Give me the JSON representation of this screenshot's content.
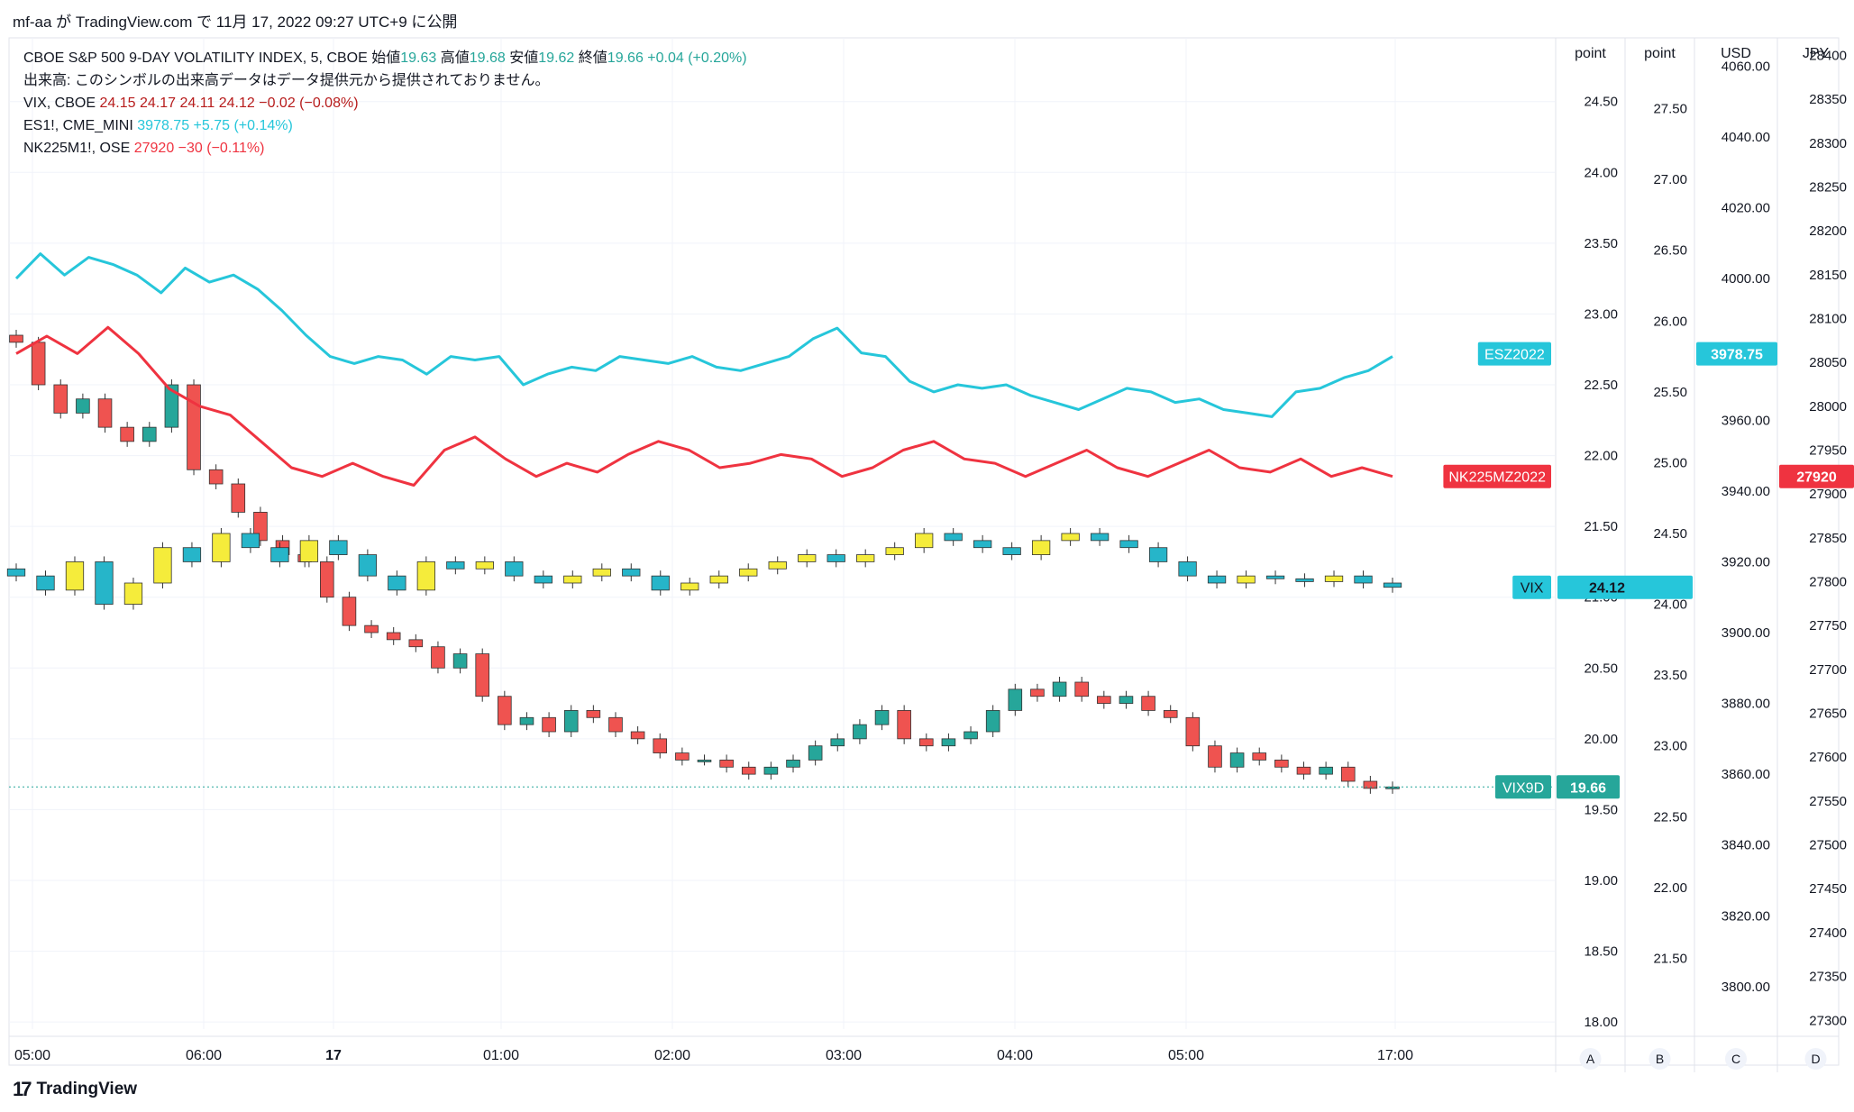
{
  "header": {
    "title": "mf-aa が TradingView.com で 11月 17, 2022 09:27 UTC+9 に公開"
  },
  "legend": {
    "main": {
      "name": "CBOE S&P 500 9-DAY VOLATILITY INDEX, 5, CBOE",
      "o_label": "始値",
      "o": "19.63",
      "h_label": "高値",
      "h": "19.68",
      "l_label": "安値",
      "l": "19.62",
      "c_label": "終値",
      "c": "19.66",
      "change": "+0.04 (+0.20%)"
    },
    "volume_note": "出来高: このシンボルの出来高データはデータ提供元から提供されておりません。",
    "vix": {
      "name": "VIX, CBOE",
      "values": "24.15  24.17  24.11  24.12  −0.02 (−0.08%)"
    },
    "es": {
      "name": "ES1!, CME_MINI",
      "values": "3978.75  +5.75 (+0.14%)"
    },
    "nk": {
      "name": "NK225M1!, OSE",
      "values": "27920  −30 (−0.11%)"
    }
  },
  "footer": {
    "brand": "TradingView",
    "logo": "17"
  },
  "chart_data": {
    "type": "line",
    "x_tick_labels": [
      "05:00",
      "06:00",
      "17",
      "01:00",
      "02:00",
      "03:00",
      "04:00",
      "05:00",
      "17:00"
    ],
    "axes": [
      {
        "id": "A",
        "unit": "point",
        "ticks": [
          "24.50",
          "24.00",
          "23.50",
          "23.00",
          "22.50",
          "22.00",
          "21.50",
          "21.00",
          "20.50",
          "20.00",
          "19.50",
          "19.00",
          "18.50",
          "18.00"
        ],
        "range": [
          17.95,
          24.95
        ]
      },
      {
        "id": "B",
        "unit": "point",
        "ticks": [
          "27.50",
          "27.00",
          "26.50",
          "26.00",
          "25.50",
          "25.00",
          "24.50",
          "24.00",
          "23.50",
          "23.00",
          "22.50",
          "22.00",
          "21.50"
        ],
        "range": [
          21.0,
          28.0
        ]
      },
      {
        "id": "C",
        "unit": "USD",
        "ticks": [
          "4060.00",
          "4040.00",
          "4020.00",
          "4000.00",
          "3980.00",
          "3960.00",
          "3940.00",
          "3920.00",
          "3900.00",
          "3880.00",
          "3860.00",
          "3840.00",
          "3820.00",
          "3800.00"
        ],
        "range": [
          3788,
          4068
        ]
      },
      {
        "id": "D",
        "unit": "JPY",
        "ticks": [
          "28400",
          "28350",
          "28300",
          "28250",
          "28200",
          "28150",
          "28100",
          "28050",
          "28000",
          "27950",
          "27900",
          "27850",
          "27800",
          "27750",
          "27700",
          "27650",
          "27600",
          "27550",
          "27500",
          "27450",
          "27400",
          "27350",
          "27300"
        ],
        "range": [
          27290,
          28420
        ]
      }
    ],
    "series": [
      {
        "name": "VIX9D",
        "type": "candlestick",
        "axis": "A",
        "last": "19.66",
        "color": "#26a69a",
        "values": [
          22.8,
          22.5,
          22.3,
          22.4,
          22.2,
          22.1,
          22.2,
          22.5,
          21.9,
          21.8,
          21.6,
          21.4,
          21.3,
          21.25,
          21.0,
          20.8,
          20.75,
          20.7,
          20.65,
          20.5,
          20.6,
          20.3,
          20.1,
          20.15,
          20.05,
          20.2,
          20.15,
          20.05,
          20.0,
          19.9,
          19.85,
          19.85,
          19.8,
          19.75,
          19.8,
          19.85,
          19.95,
          20.0,
          20.1,
          20.2,
          20.0,
          19.95,
          20.0,
          20.05,
          20.2,
          20.35,
          20.3,
          20.4,
          20.3,
          20.25,
          20.3,
          20.2,
          20.15,
          19.95,
          19.8,
          19.9,
          19.85,
          19.8,
          19.75,
          19.8,
          19.7,
          19.65,
          19.66
        ]
      },
      {
        "name": "VIX",
        "type": "candlestick",
        "axis": "B",
        "last": "24.12",
        "color": "#f5ec3b",
        "values": [
          24.2,
          24.1,
          24.3,
          24.0,
          24.15,
          24.4,
          24.3,
          24.5,
          24.4,
          24.3,
          24.45,
          24.35,
          24.2,
          24.1,
          24.3,
          24.25,
          24.3,
          24.2,
          24.15,
          24.2,
          24.25,
          24.2,
          24.1,
          24.15,
          24.2,
          24.25,
          24.3,
          24.35,
          24.3,
          24.35,
          24.4,
          24.5,
          24.45,
          24.4,
          24.35,
          24.45,
          24.5,
          24.45,
          24.4,
          24.3,
          24.2,
          24.15,
          24.2,
          24.18,
          24.16,
          24.2,
          24.15,
          24.12
        ]
      },
      {
        "name": "ESZ2022",
        "type": "line",
        "axis": "C",
        "last": "3978.75",
        "color": "#26c6da",
        "values": [
          4000,
          4007,
          4001,
          4006,
          4004,
          4001,
          3996,
          4003,
          3999,
          4001,
          3997,
          3991,
          3984,
          3978,
          3976,
          3978,
          3977,
          3973,
          3978,
          3977,
          3978,
          3970,
          3973,
          3975,
          3974,
          3978,
          3977,
          3976,
          3978,
          3975,
          3974,
          3976,
          3978,
          3983,
          3986,
          3979,
          3978,
          3971,
          3968,
          3970,
          3969,
          3970,
          3967,
          3965,
          3963,
          3966,
          3969,
          3968,
          3965,
          3966,
          3963,
          3962,
          3961,
          3968,
          3969,
          3972,
          3974,
          3978
        ]
      },
      {
        "name": "NK225MZ2022",
        "type": "line",
        "axis": "D",
        "last": "27920",
        "color": "#ef3340",
        "values": [
          28060,
          28080,
          28060,
          28090,
          28060,
          28020,
          28000,
          27990,
          27960,
          27930,
          27920,
          27935,
          27920,
          27910,
          27950,
          27965,
          27940,
          27920,
          27935,
          27925,
          27945,
          27960,
          27950,
          27930,
          27935,
          27945,
          27940,
          27920,
          27930,
          27950,
          27960,
          27940,
          27935,
          27920,
          27935,
          27950,
          27930,
          27920,
          27935,
          27950,
          27930,
          27925,
          27940,
          27920,
          27930,
          27920
        ]
      }
    ],
    "grid": true,
    "legend_position": "top-left",
    "axis_footer_labels": [
      "A",
      "B",
      "C",
      "D"
    ]
  }
}
